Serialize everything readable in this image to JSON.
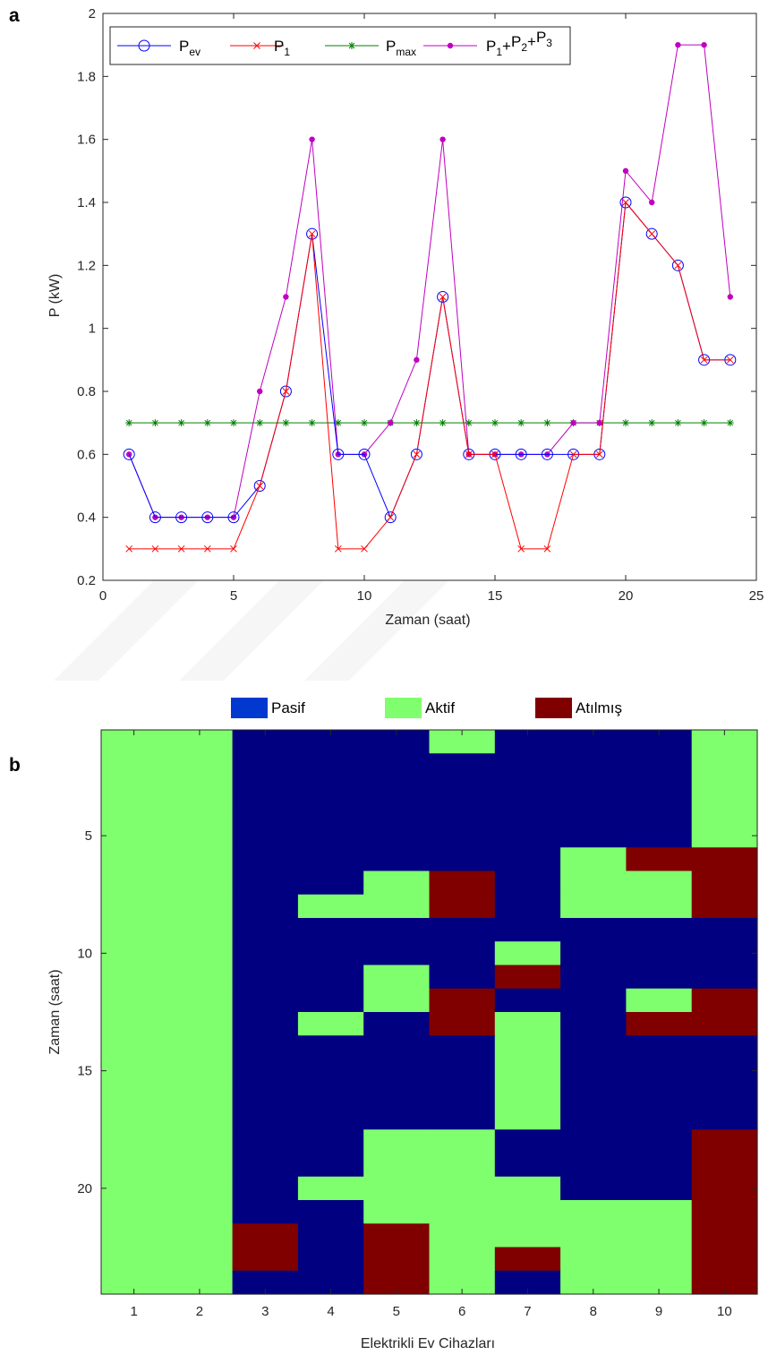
{
  "chart_data": [
    {
      "panel": "a",
      "type": "line",
      "xlabel": "Zaman (saat)",
      "ylabel": "P (kW)",
      "xlim": [
        0,
        25
      ],
      "ylim": [
        0.2,
        2
      ],
      "xticks": [
        0,
        5,
        10,
        15,
        20,
        25
      ],
      "yticks": [
        0.2,
        0.4,
        0.6,
        0.8,
        1,
        1.2,
        1.4,
        1.6,
        1.8,
        2
      ],
      "ytick_labels": [
        "0.2",
        "0.4",
        "0.6",
        "0.8",
        "1",
        "1.2",
        "1.4",
        "1.6",
        "1.8",
        "2"
      ],
      "legend_position": "top-left",
      "x": [
        1,
        2,
        3,
        4,
        5,
        6,
        7,
        8,
        9,
        10,
        11,
        12,
        13,
        14,
        15,
        16,
        17,
        18,
        19,
        20,
        21,
        22,
        23,
        24
      ],
      "series": [
        {
          "name": "P",
          "sub": "ev",
          "color": "#0000ff",
          "marker": "circle",
          "values": [
            0.6,
            0.4,
            0.4,
            0.4,
            0.4,
            0.5,
            0.8,
            1.3,
            0.6,
            0.6,
            0.4,
            0.6,
            1.1,
            0.6,
            0.6,
            0.6,
            0.6,
            0.6,
            0.6,
            1.4,
            1.3,
            1.2,
            0.9,
            0.9
          ]
        },
        {
          "name": "P",
          "sub": "1",
          "color": "#ff0000",
          "marker": "x",
          "values": [
            0.3,
            0.3,
            0.3,
            0.3,
            0.3,
            0.5,
            0.8,
            1.3,
            0.3,
            0.3,
            0.4,
            0.6,
            1.1,
            0.6,
            0.6,
            0.3,
            0.3,
            0.6,
            0.6,
            1.4,
            1.3,
            1.2,
            0.9,
            0.9
          ]
        },
        {
          "name": "P",
          "sub": "max",
          "color": "#008000",
          "marker": "star",
          "values": [
            0.7,
            0.7,
            0.7,
            0.7,
            0.7,
            0.7,
            0.7,
            0.7,
            0.7,
            0.7,
            0.7,
            0.7,
            0.7,
            0.7,
            0.7,
            0.7,
            0.7,
            0.7,
            0.7,
            0.7,
            0.7,
            0.7,
            0.7,
            0.7
          ]
        },
        {
          "name": "P1+P2+P3",
          "color": "#c000c0",
          "marker": "dot",
          "values": [
            0.6,
            0.4,
            0.4,
            0.4,
            0.4,
            0.8,
            1.1,
            1.6,
            0.6,
            0.6,
            0.7,
            0.9,
            1.6,
            0.6,
            0.6,
            0.6,
            0.6,
            0.7,
            0.7,
            1.5,
            1.4,
            1.9,
            1.9,
            1.1
          ]
        }
      ]
    },
    {
      "panel": "b",
      "type": "heatmap",
      "xlabel": "Elektrikli Ev Cihazları",
      "ylabel": "Zaman (saat)",
      "x": [
        1,
        2,
        3,
        4,
        5,
        6,
        7,
        8,
        9,
        10
      ],
      "y": [
        1,
        2,
        3,
        4,
        5,
        6,
        7,
        8,
        9,
        10,
        11,
        12,
        13,
        14,
        15,
        16,
        17,
        18,
        19,
        20,
        21,
        22,
        23,
        24
      ],
      "yticks": [
        5,
        10,
        15,
        20
      ],
      "state_legend": [
        {
          "code": 0,
          "label": "Pasif",
          "color": "#000080",
          "swatch": "#0038d0"
        },
        {
          "code": 1,
          "label": "Aktif",
          "color": "#80ff6e",
          "swatch": "#80ff6e"
        },
        {
          "code": 2,
          "label": "Atılmış",
          "color": "#800000",
          "swatch": "#800000"
        }
      ],
      "matrix": [
        [
          1,
          1,
          0,
          0,
          0,
          1,
          0,
          0,
          0,
          1
        ],
        [
          1,
          1,
          0,
          0,
          0,
          0,
          0,
          0,
          0,
          1
        ],
        [
          1,
          1,
          0,
          0,
          0,
          0,
          0,
          0,
          0,
          1
        ],
        [
          1,
          1,
          0,
          0,
          0,
          0,
          0,
          0,
          0,
          1
        ],
        [
          1,
          1,
          0,
          0,
          0,
          0,
          0,
          0,
          0,
          1
        ],
        [
          1,
          1,
          0,
          0,
          0,
          0,
          0,
          1,
          2,
          2
        ],
        [
          1,
          1,
          0,
          0,
          1,
          2,
          0,
          1,
          1,
          2
        ],
        [
          1,
          1,
          0,
          1,
          1,
          2,
          0,
          1,
          1,
          2
        ],
        [
          1,
          1,
          0,
          0,
          0,
          0,
          0,
          0,
          0,
          0
        ],
        [
          1,
          1,
          0,
          0,
          0,
          0,
          1,
          0,
          0,
          0
        ],
        [
          1,
          1,
          0,
          0,
          1,
          0,
          2,
          0,
          0,
          0
        ],
        [
          1,
          1,
          0,
          0,
          1,
          2,
          0,
          0,
          1,
          2
        ],
        [
          1,
          1,
          0,
          1,
          0,
          2,
          1,
          0,
          2,
          2
        ],
        [
          1,
          1,
          0,
          0,
          0,
          0,
          1,
          0,
          0,
          0
        ],
        [
          1,
          1,
          0,
          0,
          0,
          0,
          1,
          0,
          0,
          0
        ],
        [
          1,
          1,
          0,
          0,
          0,
          0,
          1,
          0,
          0,
          0
        ],
        [
          1,
          1,
          0,
          0,
          0,
          0,
          1,
          0,
          0,
          0
        ],
        [
          1,
          1,
          0,
          0,
          1,
          1,
          0,
          0,
          0,
          2
        ],
        [
          1,
          1,
          0,
          0,
          1,
          1,
          0,
          0,
          0,
          2
        ],
        [
          1,
          1,
          0,
          1,
          1,
          1,
          1,
          0,
          0,
          2
        ],
        [
          1,
          1,
          0,
          0,
          1,
          1,
          1,
          1,
          1,
          2
        ],
        [
          1,
          1,
          2,
          0,
          2,
          1,
          1,
          1,
          1,
          2
        ],
        [
          1,
          1,
          2,
          0,
          2,
          1,
          2,
          1,
          1,
          2
        ],
        [
          1,
          1,
          0,
          0,
          2,
          1,
          0,
          1,
          1,
          2
        ]
      ]
    }
  ]
}
